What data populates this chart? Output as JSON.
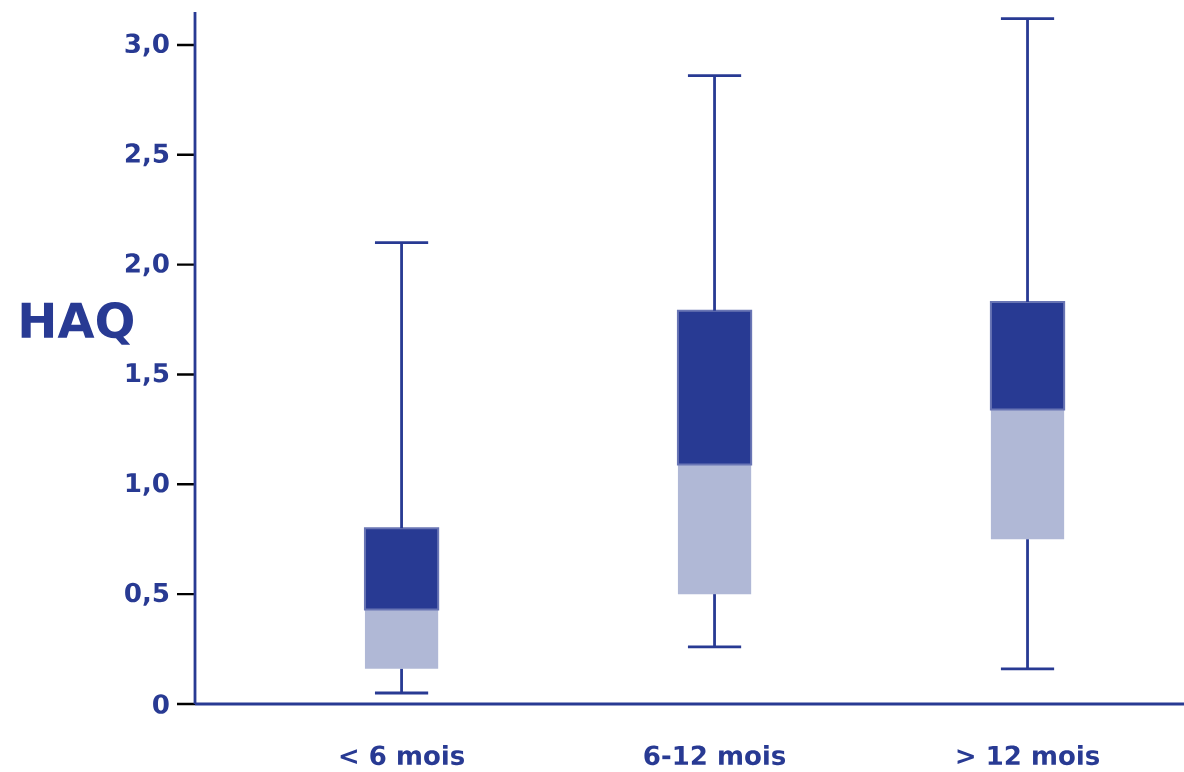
{
  "chart_data": {
    "type": "box",
    "ylabel": "HAQ",
    "categories": [
      "< 6 mois",
      "6-12 mois",
      "> 12 mois"
    ],
    "boxes": [
      {
        "low": 0.05,
        "q1": 0.16,
        "median": 0.43,
        "q3": 0.8,
        "high": 2.1
      },
      {
        "low": 0.26,
        "q1": 0.5,
        "median": 1.09,
        "q3": 1.79,
        "high": 2.86
      },
      {
        "low": 0.16,
        "q1": 0.75,
        "median": 1.34,
        "q3": 1.83,
        "high": 3.12
      }
    ],
    "color": "#283a93",
    "colors": [
      "#b0b8d6",
      "#b0b8d6",
      "#b0b8d6"
    ],
    "ylim": [
      0,
      3.15
    ],
    "yticks": [
      0,
      {
        "value": 0.5,
        "label": "0,5"
      },
      {
        "value": 1,
        "label": "1,0"
      },
      {
        "value": 1.5,
        "label": "1,5"
      },
      {
        "value": 2,
        "label": "2,0"
      },
      {
        "value": 2.5,
        "label": "2,5"
      },
      {
        "value": 3,
        "label": "3,0"
      }
    ],
    "grid": false
  }
}
